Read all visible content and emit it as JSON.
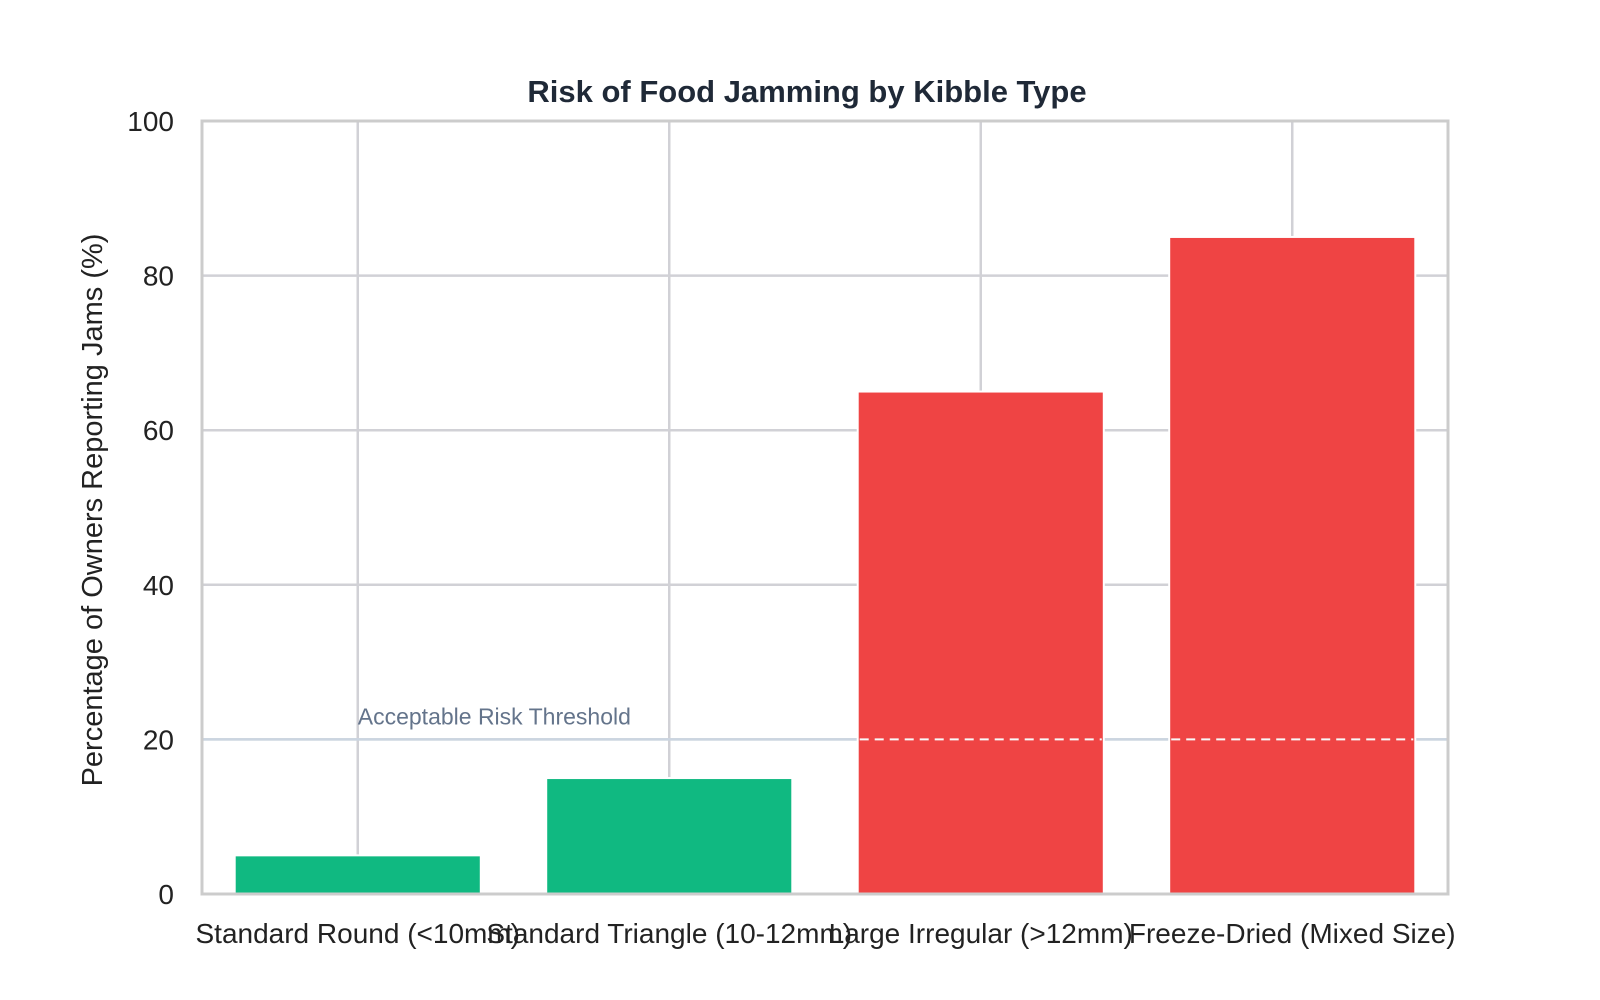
{
  "chart_data": {
    "type": "bar",
    "title": "Risk of Food Jamming by Kibble Type",
    "xlabel": "",
    "ylabel": "Percentage of Owners Reporting Jams (%)",
    "categories": [
      "Standard Round (<10mm)",
      "Standard Triangle (10-12mm)",
      "Large Irregular (>12mm)",
      "Freeze-Dried (Mixed Size)"
    ],
    "values": [
      5,
      15,
      65,
      85
    ],
    "ylim": [
      0,
      100
    ],
    "yticks": [
      "0",
      "20",
      "40",
      "60",
      "80",
      "100"
    ],
    "grid": true,
    "threshold": {
      "value": 20,
      "label": "Acceptable Risk Threshold"
    },
    "colors": {
      "below_threshold": "#10b981",
      "above_threshold": "#ef4444",
      "threshold_line": "#cbd5e1",
      "threshold_text": "#64748b",
      "grid": "#d1d1d6",
      "frame": "#cccccc",
      "title": "#1f2937"
    }
  }
}
